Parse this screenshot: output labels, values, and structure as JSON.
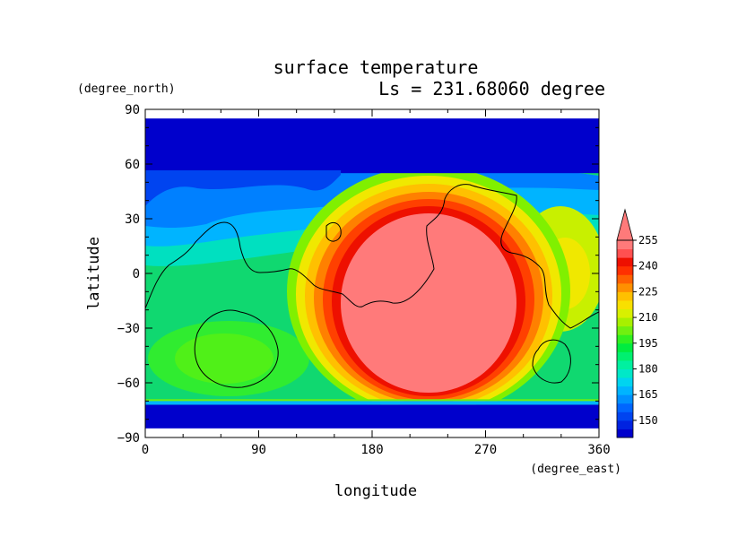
{
  "chart_data": {
    "type": "heatmap",
    "title": "surface temperature",
    "subtitle": "Ls = 231.68060 degree",
    "xlabel": "longitude",
    "ylabel": "latitude",
    "x_units": "(degree_east)",
    "y_units": "(degree_north)",
    "xlim": [
      0,
      360
    ],
    "ylim": [
      -90,
      90
    ],
    "x_ticks": [
      "0",
      "90",
      "180",
      "270",
      "360"
    ],
    "y_ticks": [
      "90",
      "60",
      "30",
      "0",
      "−30",
      "−60",
      "−90"
    ],
    "colorbar": {
      "labels": [
        "255",
        "240",
        "225",
        "210",
        "195",
        "180",
        "165",
        "150"
      ],
      "levels": [
        145,
        150,
        155,
        160,
        165,
        170,
        175,
        180,
        185,
        190,
        195,
        200,
        205,
        210,
        215,
        220,
        225,
        230,
        235,
        240,
        245,
        250,
        255
      ],
      "colors": [
        "#0000cc",
        "#0022e0",
        "#0044f0",
        "#0066ff",
        "#0090ff",
        "#00b4ff",
        "#00d4f0",
        "#00e8c8",
        "#00f0a0",
        "#00f070",
        "#00ec40",
        "#30f020",
        "#70f010",
        "#a8f000",
        "#d8f000",
        "#f8e000",
        "#ffc000",
        "#ff9000",
        "#ff6000",
        "#ff3000",
        "#ee1000",
        "#ff5050",
        "#ff7a7a"
      ]
    },
    "grid": false,
    "legend": "right"
  }
}
